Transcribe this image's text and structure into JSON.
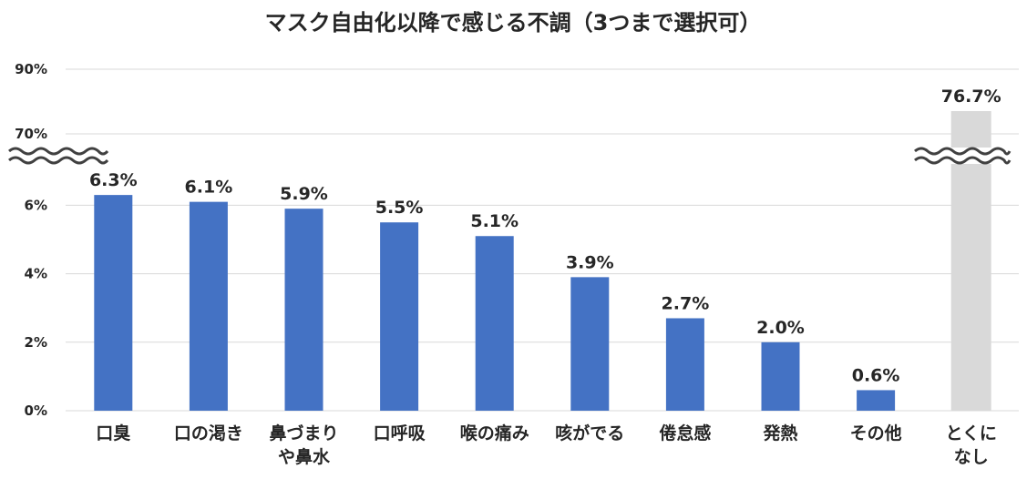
{
  "chart_data": {
    "type": "bar",
    "title": "マスク自由化以降で感じる不調（3つまで選択可）",
    "xlabel": "",
    "ylabel": "",
    "categories": [
      "口臭",
      "口の渇き",
      "鼻づまり\nや鼻水",
      "口呼吸",
      "喉の痛み",
      "咳がでる",
      "倦怠感",
      "発熱",
      "その他",
      "とくに\nなし"
    ],
    "values": [
      6.3,
      6.1,
      5.9,
      5.5,
      5.1,
      3.9,
      2.7,
      2.0,
      0.6,
      76.7
    ],
    "data_labels": [
      "6.3%",
      "6.1%",
      "5.9%",
      "5.5%",
      "5.1%",
      "3.9%",
      "2.7%",
      "2.0%",
      "0.6%",
      "76.7%"
    ],
    "axis_break": {
      "lower_range": [
        0,
        7
      ],
      "upper_range": [
        70,
        90
      ]
    },
    "yticks_lower": [
      "0%",
      "2%",
      "4%",
      "6%"
    ],
    "yticks_lower_values": [
      0,
      2,
      4,
      6
    ],
    "yticks_upper": [
      "70%",
      "90%"
    ],
    "yticks_upper_values": [
      70,
      90
    ],
    "grid": true,
    "legend": "none",
    "colors": {
      "bar": "#4472c4",
      "highlight_bar": "#d9d9d9",
      "text": "#262626",
      "grid": "#d9d9d9",
      "break_line": "#404040"
    }
  }
}
